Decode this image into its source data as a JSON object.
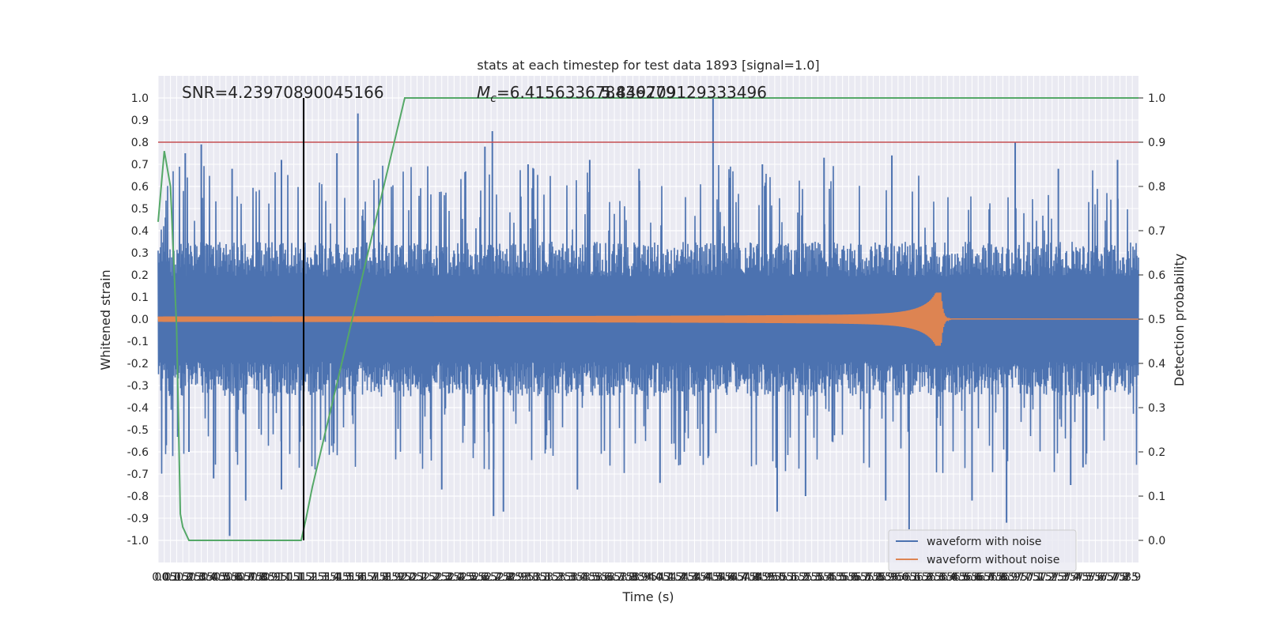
{
  "chart_data": {
    "type": "line",
    "title": "stats at each timestep for test data 1893 [signal=1.0]",
    "xlabel": "Time (s)",
    "ylabel": "Whitened strain",
    "ylabel_right": "Detection probability",
    "xlim": [
      0.0,
      7.95
    ],
    "ylim": [
      -1.1,
      1.1
    ],
    "ylim_right": [
      -0.05,
      1.05
    ],
    "x_ticks": [
      0.0,
      0.05,
      0.1,
      0.15,
      0.2,
      0.25,
      0.3,
      0.35,
      0.4,
      0.45,
      0.5,
      0.55,
      0.6,
      0.65,
      0.7,
      0.75,
      0.8,
      0.85,
      0.9,
      0.95,
      1.0,
      1.05,
      1.1,
      1.15,
      1.2,
      1.25,
      1.3,
      1.35,
      1.4,
      1.45,
      1.5,
      1.55,
      1.6,
      1.65,
      1.7,
      1.75,
      1.8,
      1.85,
      1.9,
      1.95,
      2.0,
      2.05,
      2.1,
      2.15,
      2.2,
      2.25,
      2.3,
      2.35,
      2.4,
      2.45,
      2.5,
      2.55,
      2.6,
      2.65,
      2.7,
      2.75,
      2.8,
      2.85,
      2.9,
      2.95,
      3.0,
      3.05,
      3.1,
      3.15,
      3.2,
      3.25,
      3.3,
      3.35,
      3.4,
      3.45,
      3.5,
      3.55,
      3.6,
      3.65,
      3.7,
      3.75,
      3.8,
      3.85,
      3.9,
      3.95,
      4.0,
      4.05,
      4.1,
      4.15,
      4.2,
      4.25,
      4.3,
      4.35,
      4.4,
      4.45,
      4.5,
      4.55,
      4.6,
      4.65,
      4.7,
      4.75,
      4.8,
      4.85,
      4.9,
      4.95,
      5.0,
      5.05,
      5.1,
      5.15,
      5.2,
      5.25,
      5.3,
      5.35,
      5.4,
      5.45,
      5.5,
      5.55,
      5.6,
      5.65,
      5.7,
      5.75,
      5.8,
      5.85,
      5.9,
      5.95,
      6.0,
      6.05,
      6.1,
      6.15,
      6.2,
      6.25,
      6.3,
      6.35,
      6.4,
      6.45,
      6.5,
      6.55,
      6.6,
      6.65,
      6.7,
      6.75,
      6.8,
      6.85,
      6.9,
      6.95,
      7.0,
      7.05,
      7.1,
      7.15,
      7.2,
      7.25,
      7.3,
      7.35,
      7.4,
      7.45,
      7.5,
      7.55,
      7.6,
      7.65,
      7.7,
      7.75,
      7.8,
      7.85,
      7.9
    ],
    "y_ticks": [
      -1.0,
      -0.9,
      -0.8,
      -0.7,
      -0.6,
      -0.5,
      -0.4,
      -0.3,
      -0.2,
      -0.1,
      0.0,
      0.1,
      0.2,
      0.3,
      0.4,
      0.5,
      0.6,
      0.7,
      0.8,
      0.9,
      1.0
    ],
    "y_ticks_right": [
      0.0,
      0.1,
      0.2,
      0.3,
      0.4,
      0.5,
      0.6,
      0.7,
      0.8,
      0.9,
      1.0
    ],
    "grid": true,
    "legend_position": "lower-right",
    "annotations": {
      "snr": "SNR=4.23970890045166",
      "mc_symbol": "M",
      "mc_sub": "c",
      "mc_value": "=6.415633678436279",
      "overlap": "5.849709129333496"
    },
    "threshold_right": 0.9,
    "threshold_color": "#c44e52",
    "vline_x": 1.18,
    "series": [
      {
        "name": "waveform with noise",
        "color": "#4c72b0",
        "style": "noise",
        "envelope_typical": 0.35,
        "spikes": [
          {
            "x": 0.35,
            "y": 0.79
          },
          {
            "x": 0.58,
            "y": -0.98
          },
          {
            "x": 0.71,
            "y": -0.82
          },
          {
            "x": 1.62,
            "y": 0.93
          },
          {
            "x": 2.71,
            "y": 0.85
          },
          {
            "x": 2.65,
            "y": 0.78
          },
          {
            "x": 2.72,
            "y": -0.89
          },
          {
            "x": 2.8,
            "y": -0.87
          },
          {
            "x": 4.5,
            "y": 1.0
          },
          {
            "x": 4.07,
            "y": -0.74
          },
          {
            "x": 5.02,
            "y": -0.87
          },
          {
            "x": 6.09,
            "y": -0.95
          },
          {
            "x": 6.95,
            "y": 0.8
          },
          {
            "x": 6.88,
            "y": -0.92
          },
          {
            "x": 7.78,
            "y": 0.72
          },
          {
            "x": 1.0,
            "y": 0.72
          },
          {
            "x": 1.45,
            "y": 0.75
          },
          {
            "x": 3.5,
            "y": 0.72
          },
          {
            "x": 5.4,
            "y": 0.73
          },
          {
            "x": 5.95,
            "y": 0.74
          },
          {
            "x": 0.45,
            "y": -0.72
          },
          {
            "x": 1.0,
            "y": -0.77
          },
          {
            "x": 2.3,
            "y": -0.77
          },
          {
            "x": 3.4,
            "y": -0.77
          },
          {
            "x": 5.25,
            "y": -0.8
          },
          {
            "x": 5.9,
            "y": -0.82
          },
          {
            "x": 6.6,
            "y": -0.82
          },
          {
            "x": 7.4,
            "y": -0.75
          },
          {
            "x": 0.25,
            "y": -0.6
          },
          {
            "x": 7.5,
            "y": -0.67
          },
          {
            "x": 0.22,
            "y": 0.75
          },
          {
            "x": 0.6,
            "y": 0.68
          },
          {
            "x": 3.0,
            "y": 0.7
          },
          {
            "x": 3.9,
            "y": 0.68
          },
          {
            "x": 4.9,
            "y": 0.7
          },
          {
            "x": 7.3,
            "y": 0.68
          }
        ]
      },
      {
        "name": "waveform without noise",
        "color": "#dd8452",
        "style": "chirp",
        "merger_time": 6.35,
        "peak_amplitude": 0.12
      },
      {
        "name": "detection probability",
        "color": "#55a868",
        "axis": "right",
        "x": [
          0.0,
          0.05,
          0.1,
          0.15,
          0.18,
          0.2,
          0.25,
          0.3,
          0.4,
          0.5,
          0.6,
          0.7,
          0.8,
          0.9,
          1.0,
          1.05,
          1.1,
          1.13,
          1.16,
          1.2,
          1.25,
          2.0,
          3.0,
          4.0,
          5.0,
          6.0,
          7.0,
          7.95
        ],
        "values": [
          0.72,
          0.88,
          0.8,
          0.48,
          0.06,
          0.03,
          0.0,
          0.0,
          0.0,
          0.0,
          0.0,
          0.0,
          0.0,
          0.0,
          0.0,
          0.0,
          0.0,
          0.0,
          0.0,
          0.05,
          0.12,
          1.0,
          1.0,
          1.0,
          1.0,
          1.0,
          1.0,
          1.0
        ]
      }
    ]
  }
}
